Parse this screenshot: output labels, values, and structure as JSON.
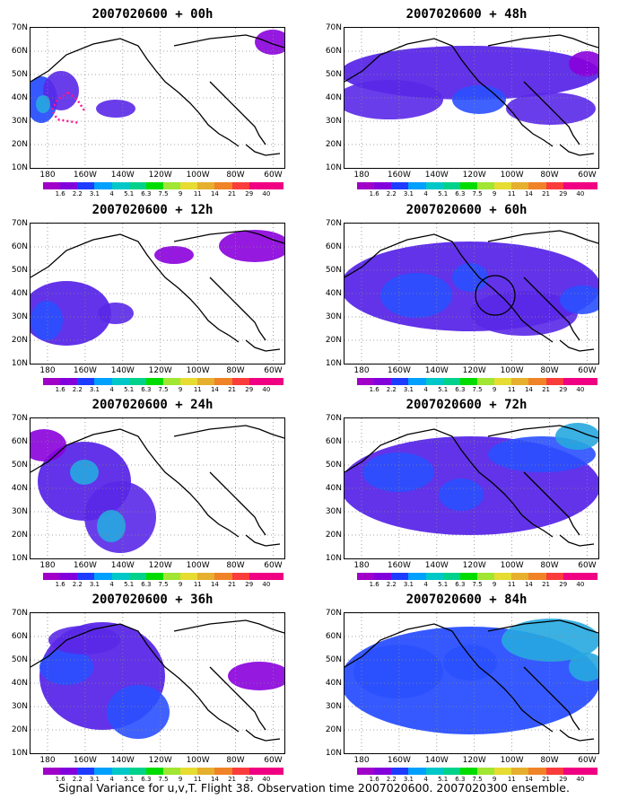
{
  "figure": {
    "caption": "Signal Variance for u,v,T. Flight 38. Observation time 2007020600. 2007020300 ensemble."
  },
  "axes": {
    "lat_labels": [
      "70N",
      "60N",
      "50N",
      "40N",
      "30N",
      "20N",
      "10N"
    ],
    "lon_labels": [
      "180",
      "160W",
      "140W",
      "120W",
      "100W",
      "80W",
      "60W"
    ]
  },
  "colorbar": {
    "labels": [
      "1.6",
      "2.2",
      "3.1",
      "4",
      "5.1",
      "6.3",
      "7.5",
      "9",
      "11",
      "14",
      "21",
      "29",
      "40"
    ],
    "colors": [
      "#a000c8",
      "#8200dc",
      "#1e3cff",
      "#00a0ff",
      "#00c8c8",
      "#00d28c",
      "#00dc00",
      "#a0e632",
      "#e6dc32",
      "#e6af2d",
      "#f08228",
      "#fa3c3c",
      "#f00082"
    ]
  },
  "panels": [
    {
      "title": "2007020600 + 00h"
    },
    {
      "title": "2007020600 + 12h"
    },
    {
      "title": "2007020600 + 24h"
    },
    {
      "title": "2007020600 + 36h"
    },
    {
      "title": "2007020600 + 48h"
    },
    {
      "title": "2007020600 + 60h"
    },
    {
      "title": "2007020600 + 72h"
    },
    {
      "title": "2007020600 + 84h"
    }
  ]
}
